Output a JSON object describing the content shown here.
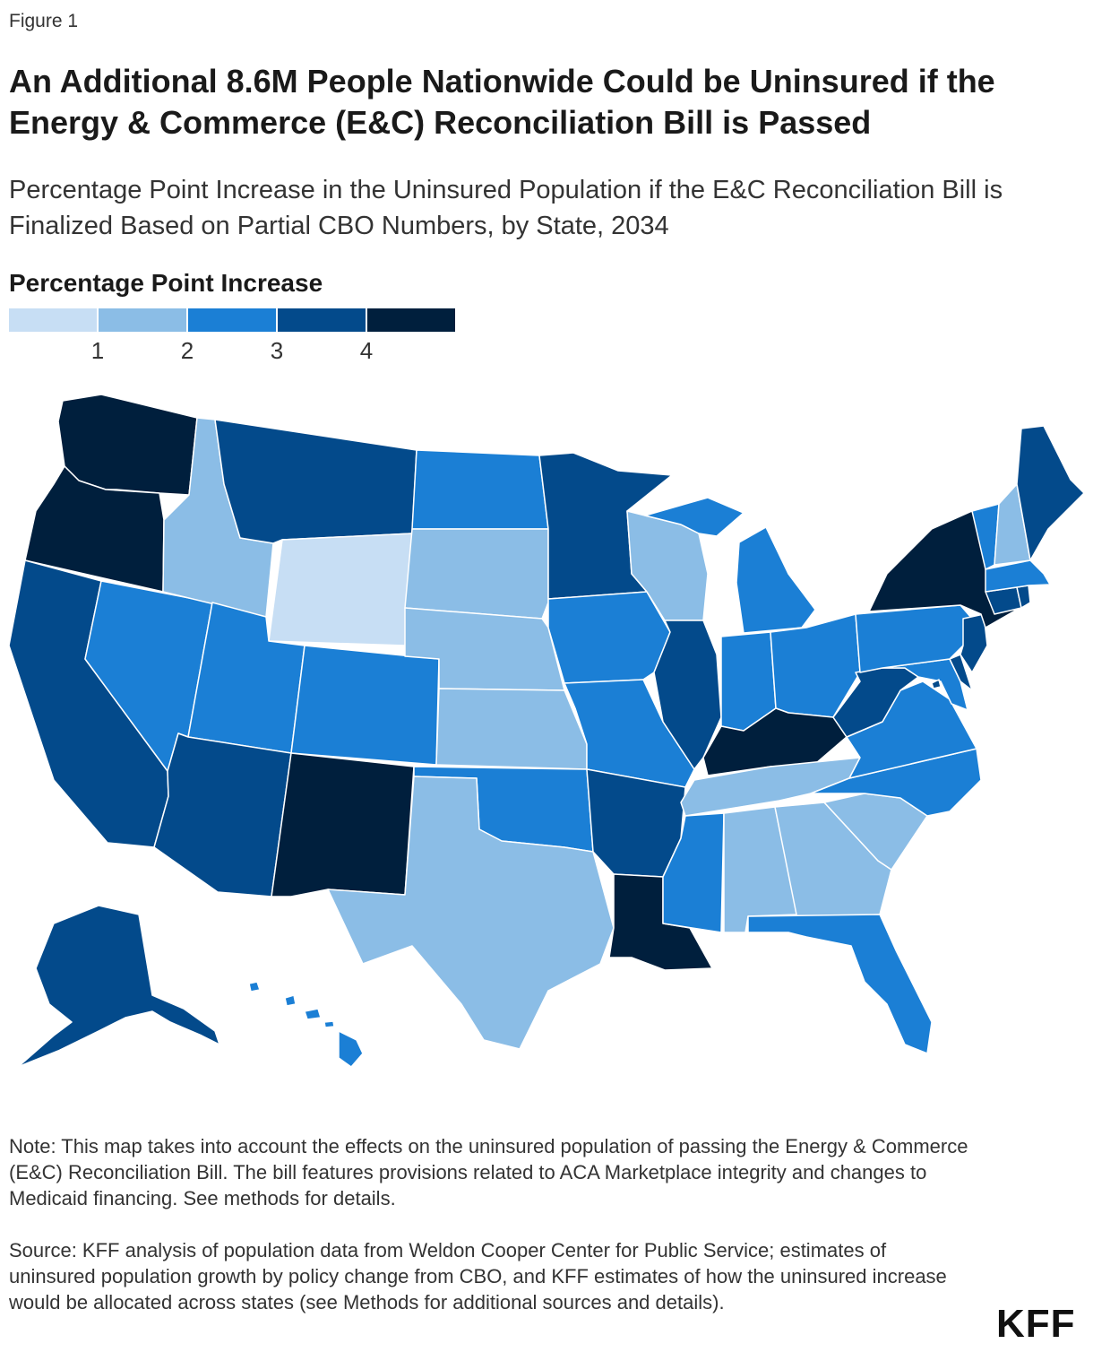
{
  "header": {
    "figure_label": "Figure 1",
    "title": "An Additional 8.6M People Nationwide Could be Uninsured if the Energy & Commerce (E&C) Reconciliation Bill is Passed",
    "subtitle": "Percentage Point Increase in the Uninsured Population if the E&C Reconciliation Bill is Finalized Based on Partial CBO Numbers, by State, 2034"
  },
  "legend": {
    "title": "Percentage Point Increase",
    "bins": [
      {
        "label": "0–1",
        "color": "#c7def4"
      },
      {
        "label": "1–2",
        "color": "#8bbde6"
      },
      {
        "label": "2–3",
        "color": "#1b7fd5"
      },
      {
        "label": "3–4",
        "color": "#034a8b"
      },
      {
        "label": "4+",
        "color": "#001f3d"
      }
    ],
    "ticks": [
      "1",
      "2",
      "3",
      "4"
    ]
  },
  "chart_data": {
    "type": "choropleth",
    "units": "percentage points",
    "note": "Values are the legend bin (0=<1, 1=1–2, 2=2–3, 3=3–4, 4=4+) estimated from colors",
    "states": {
      "WA": 4,
      "OR": 4,
      "CA": 3,
      "NV": 2,
      "ID": 1,
      "MT": 3,
      "WY": 0,
      "UT": 2,
      "AZ": 3,
      "CO": 2,
      "NM": 4,
      "ND": 2,
      "SD": 1,
      "NE": 1,
      "KS": 1,
      "OK": 2,
      "TX": 1,
      "MN": 3,
      "IA": 2,
      "MO": 2,
      "AR": 3,
      "LA": 4,
      "WI": 1,
      "IL": 3,
      "MI": 2,
      "IN": 2,
      "OH": 2,
      "KY": 4,
      "TN": 1,
      "MS": 2,
      "AL": 1,
      "GA": 1,
      "FL": 2,
      "SC": 1,
      "NC": 2,
      "VA": 2,
      "WV": 3,
      "PA": 2,
      "NY": 4,
      "VT": 2,
      "NH": 1,
      "ME": 3,
      "MA": 2,
      "RI": 3,
      "CT": 3,
      "NJ": 3,
      "DE": 3,
      "MD": 2,
      "DC": 3,
      "AK": 3,
      "HI": 2
    }
  },
  "footer": {
    "note": "Note: This map takes into account the effects on the uninsured population of passing the Energy & Commerce (E&C) Reconciliation Bill. The bill features provisions related to ACA Marketplace integrity and changes to Medicaid financing. See methods for details.",
    "source": "Source: KFF analysis of population data from Weldon Cooper Center for Public Service; estimates of uninsured population growth by policy change from CBO, and KFF estimates of how the uninsured increase would be allocated across states (see Methods for additional sources and details).",
    "logo": "KFF"
  }
}
